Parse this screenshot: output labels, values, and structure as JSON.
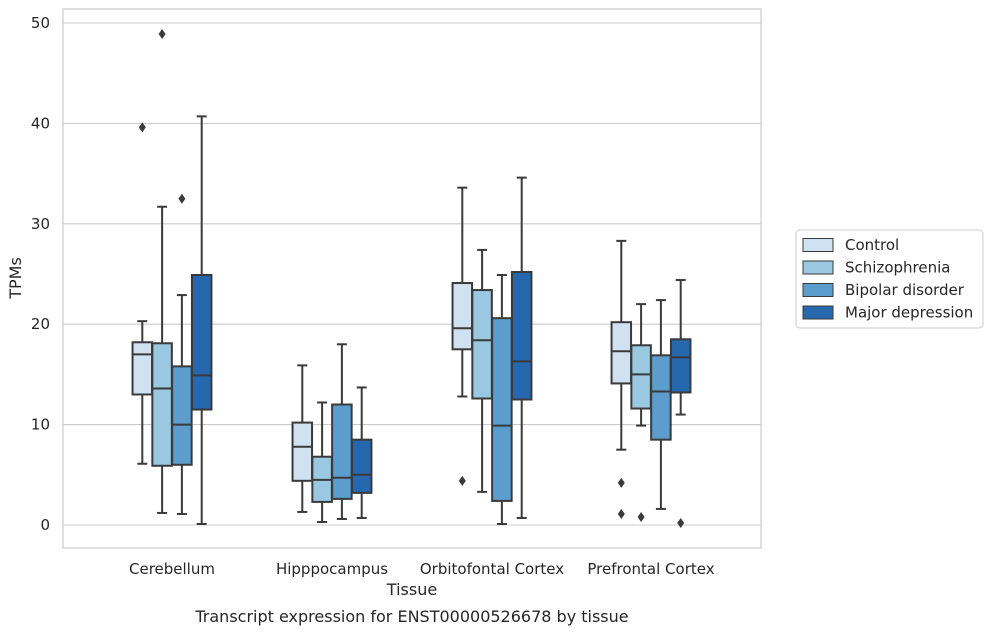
{
  "chart_data": {
    "type": "boxplot",
    "title": "",
    "caption": "Transcript expression for ENST00000526678 by tissue",
    "xlabel": "Tissue",
    "ylabel": "TPMs",
    "ylim": [
      -2.2,
      51.5
    ],
    "yticks": [
      0,
      10,
      20,
      30,
      40,
      50
    ],
    "grid": "horizontal",
    "legend_position": "right",
    "categories": [
      "Cerebellum",
      "Hipppocampus",
      "Orbitofontal Cortex",
      "Prefrontal Cortex"
    ],
    "series": [
      {
        "name": "Control",
        "color": "#d0e1f2",
        "boxes": [
          {
            "whisker_low": 6.1,
            "q1": 13.0,
            "median": 17.0,
            "q3": 18.2,
            "whisker_high": 20.3,
            "outliers": [
              39.6
            ]
          },
          {
            "whisker_low": 1.3,
            "q1": 4.4,
            "median": 7.8,
            "q3": 10.2,
            "whisker_high": 15.9,
            "outliers": []
          },
          {
            "whisker_low": 12.8,
            "q1": 17.5,
            "median": 19.6,
            "q3": 24.1,
            "whisker_high": 33.6,
            "outliers": [
              4.4
            ]
          },
          {
            "whisker_low": 7.5,
            "q1": 14.1,
            "median": 17.3,
            "q3": 20.2,
            "whisker_high": 28.3,
            "outliers": [
              4.2,
              1.1
            ]
          }
        ]
      },
      {
        "name": "Schizophrenia",
        "color": "#9ac8e0",
        "boxes": [
          {
            "whisker_low": 1.2,
            "q1": 5.9,
            "median": 13.6,
            "q3": 18.1,
            "whisker_high": 31.7,
            "outliers": [
              48.9
            ]
          },
          {
            "whisker_low": 0.3,
            "q1": 2.3,
            "median": 4.5,
            "q3": 6.8,
            "whisker_high": 12.2,
            "outliers": []
          },
          {
            "whisker_low": 3.3,
            "q1": 12.6,
            "median": 18.4,
            "q3": 23.4,
            "whisker_high": 27.4,
            "outliers": []
          },
          {
            "whisker_low": 9.9,
            "q1": 11.6,
            "median": 15.0,
            "q3": 17.9,
            "whisker_high": 22.0,
            "outliers": [
              0.8
            ]
          }
        ]
      },
      {
        "name": "Bipolar disorder",
        "color": "#5b9ecd",
        "boxes": [
          {
            "whisker_low": 1.1,
            "q1": 6.0,
            "median": 10.0,
            "q3": 15.8,
            "whisker_high": 22.9,
            "outliers": [
              32.5
            ]
          },
          {
            "whisker_low": 0.6,
            "q1": 2.6,
            "median": 4.7,
            "q3": 12.0,
            "whisker_high": 18.0,
            "outliers": []
          },
          {
            "whisker_low": 0.1,
            "q1": 2.4,
            "median": 9.9,
            "q3": 20.6,
            "whisker_high": 24.9,
            "outliers": []
          },
          {
            "whisker_low": 1.6,
            "q1": 8.5,
            "median": 13.3,
            "q3": 16.9,
            "whisker_high": 22.4,
            "outliers": []
          }
        ]
      },
      {
        "name": "Major depression",
        "color": "#2767ad",
        "boxes": [
          {
            "whisker_low": 0.1,
            "q1": 11.5,
            "median": 14.9,
            "q3": 24.9,
            "whisker_high": 40.7,
            "outliers": []
          },
          {
            "whisker_low": 0.7,
            "q1": 3.2,
            "median": 5.0,
            "q3": 8.5,
            "whisker_high": 13.7,
            "outliers": []
          },
          {
            "whisker_low": 0.7,
            "q1": 12.5,
            "median": 16.3,
            "q3": 25.2,
            "whisker_high": 34.6,
            "outliers": []
          },
          {
            "whisker_low": 11.0,
            "q1": 13.2,
            "median": 16.7,
            "q3": 18.5,
            "whisker_high": 24.4,
            "outliers": [
              0.2
            ]
          }
        ]
      }
    ]
  }
}
